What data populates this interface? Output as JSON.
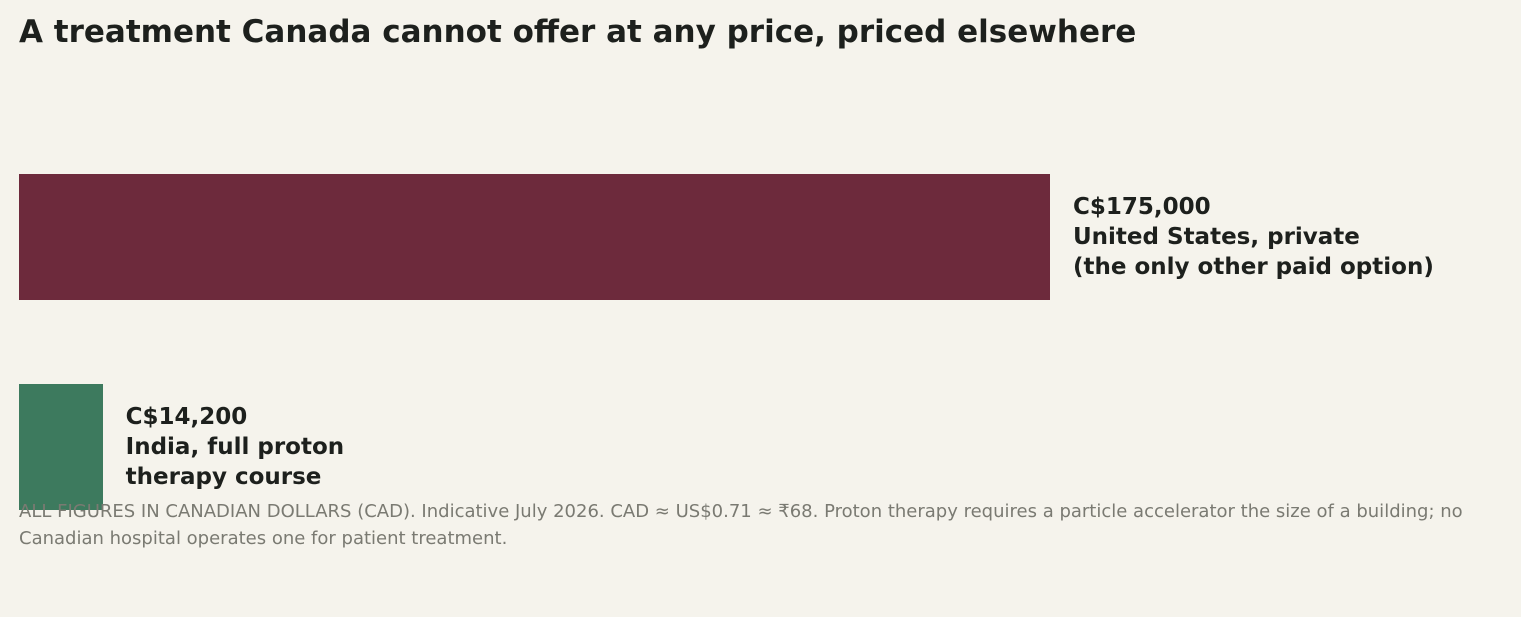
{
  "chart_data": {
    "type": "bar",
    "orientation": "horizontal",
    "title": "A treatment Canada cannot offer at any price, priced elsewhere",
    "categories": [
      "United States, private\n(the only other paid option)",
      "India, full proton\ntherapy course"
    ],
    "values": [
      175000,
      14200
    ],
    "value_labels": [
      "C$175,000",
      "C$14,200"
    ],
    "colors": [
      "#6d2a3c",
      "#3d7a5e"
    ],
    "footnote": "ALL FIGURES IN CANADIAN DOLLARS (CAD). Indicative July 2026. CAD ≈ US$0.71 ≈ ₹68. Proton therapy requires a particle accelerator the size of a building; no Canadian hospital operates one for patient treatment."
  }
}
